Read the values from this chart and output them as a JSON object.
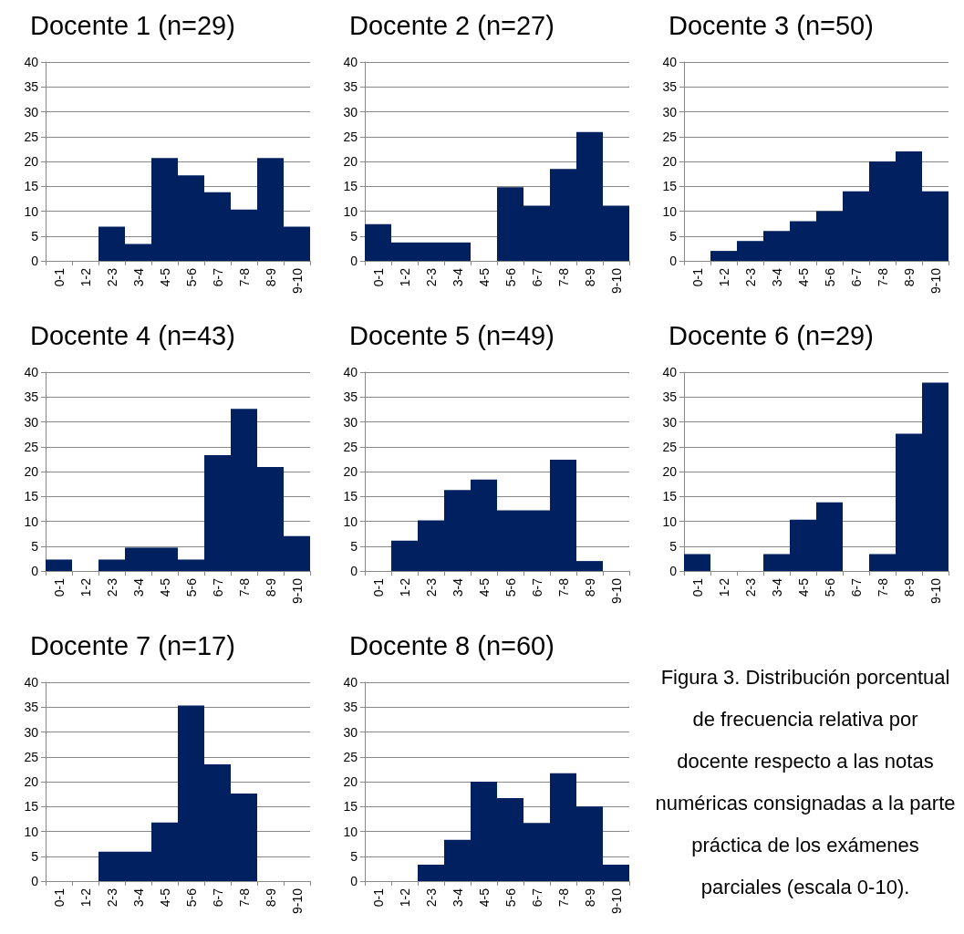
{
  "chart_data": [
    {
      "type": "bar",
      "title": "Docente 1 (n=29)",
      "categories": [
        "0-1",
        "1-2",
        "2-3",
        "3-4",
        "4-5",
        "5-6",
        "6-7",
        "7-8",
        "8-9",
        "9-10"
      ],
      "values": [
        0,
        0,
        6.9,
        3.4,
        20.7,
        17.2,
        13.8,
        10.3,
        20.7,
        6.9
      ],
      "color": "#002060",
      "ylim": [
        0,
        40
      ],
      "yticks": [
        0,
        5,
        10,
        15,
        20,
        25,
        30,
        35,
        40
      ],
      "grid": "y"
    },
    {
      "type": "bar",
      "title": "Docente 2 (n=27)",
      "categories": [
        "0-1",
        "1-2",
        "2-3",
        "3-4",
        "4-5",
        "5-6",
        "6-7",
        "7-8",
        "8-9",
        "9-10"
      ],
      "values": [
        7.4,
        3.7,
        3.7,
        3.7,
        0,
        14.8,
        11.1,
        18.5,
        25.9,
        11.1
      ],
      "color": "#002060",
      "ylim": [
        0,
        40
      ],
      "yticks": [
        0,
        5,
        10,
        15,
        20,
        25,
        30,
        35,
        40
      ],
      "grid": "y"
    },
    {
      "type": "bar",
      "title": "Docente 3 (n=50)",
      "categories": [
        "0-1",
        "1-2",
        "2-3",
        "3-4",
        "4-5",
        "5-6",
        "6-7",
        "7-8",
        "8-9",
        "9-10"
      ],
      "values": [
        0,
        2,
        4,
        6,
        8,
        10,
        14,
        20,
        22,
        14
      ],
      "color": "#002060",
      "ylim": [
        0,
        40
      ],
      "yticks": [
        0,
        5,
        10,
        15,
        20,
        25,
        30,
        35,
        40
      ],
      "grid": "y"
    },
    {
      "type": "bar",
      "title": "Docente 4 (n=43)",
      "categories": [
        "0-1",
        "1-2",
        "2-3",
        "3-4",
        "4-5",
        "5-6",
        "6-7",
        "7-8",
        "8-9",
        "9-10"
      ],
      "values": [
        2.3,
        0,
        2.3,
        4.7,
        4.7,
        2.3,
        23.3,
        32.6,
        20.9,
        7
      ],
      "color": "#002060",
      "ylim": [
        0,
        40
      ],
      "yticks": [
        0,
        5,
        10,
        15,
        20,
        25,
        30,
        35,
        40
      ],
      "grid": "y"
    },
    {
      "type": "bar",
      "title": "Docente 5 (n=49)",
      "categories": [
        "0-1",
        "1-2",
        "2-3",
        "3-4",
        "4-5",
        "5-6",
        "6-7",
        "7-8",
        "8-9",
        "9-10"
      ],
      "values": [
        0,
        6.1,
        10.2,
        16.3,
        18.4,
        12.2,
        12.2,
        22.4,
        2,
        0
      ],
      "color": "#002060",
      "ylim": [
        0,
        40
      ],
      "yticks": [
        0,
        5,
        10,
        15,
        20,
        25,
        30,
        35,
        40
      ],
      "grid": "y"
    },
    {
      "type": "bar",
      "title": "Docente 6 (n=29)",
      "categories": [
        "0-1",
        "1-2",
        "2-3",
        "3-4",
        "4-5",
        "5-6",
        "6-7",
        "7-8",
        "8-9",
        "9-10"
      ],
      "values": [
        3.4,
        0,
        0,
        3.4,
        10.3,
        13.8,
        0,
        3.4,
        27.6,
        37.9
      ],
      "color": "#002060",
      "ylim": [
        0,
        40
      ],
      "yticks": [
        0,
        5,
        10,
        15,
        20,
        25,
        30,
        35,
        40
      ],
      "grid": "y"
    },
    {
      "type": "bar",
      "title": "Docente 7 (n=17)",
      "categories": [
        "0-1",
        "1-2",
        "2-3",
        "3-4",
        "4-5",
        "5-6",
        "6-7",
        "7-8",
        "8-9",
        "9-10"
      ],
      "values": [
        0,
        0,
        5.9,
        5.9,
        11.8,
        35.3,
        23.5,
        17.6,
        0,
        0
      ],
      "color": "#002060",
      "ylim": [
        0,
        40
      ],
      "yticks": [
        0,
        5,
        10,
        15,
        20,
        25,
        30,
        35,
        40
      ],
      "grid": "y"
    },
    {
      "type": "bar",
      "title": "Docente 8 (n=60)",
      "categories": [
        "0-1",
        "1-2",
        "2-3",
        "3-4",
        "4-5",
        "5-6",
        "6-7",
        "7-8",
        "8-9",
        "9-10"
      ],
      "values": [
        0,
        0,
        3.3,
        8.3,
        20,
        16.7,
        11.7,
        21.7,
        15,
        3.3
      ],
      "color": "#002060",
      "ylim": [
        0,
        40
      ],
      "yticks": [
        0,
        5,
        10,
        15,
        20,
        25,
        30,
        35,
        40
      ],
      "grid": "y"
    },
    {
      "type": "other",
      "annotations": [
        "Figura 3. Distribución porcentual de frecuencia relativa por docente respecto a las notas numéricas consignadas a la parte práctica de los exámenes parciales (escala 0-10)."
      ]
    }
  ]
}
